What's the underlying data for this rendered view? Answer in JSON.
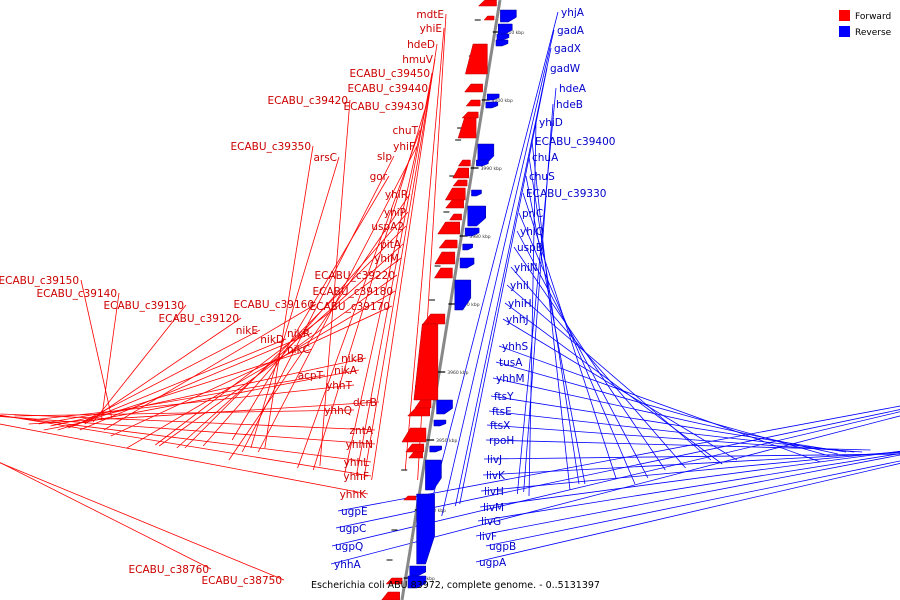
{
  "caption": "Escherichia coli ABU 83972, complete genome. - 0..5131397",
  "legend": {
    "forward_label": "Forward",
    "reverse_label": "Reverse",
    "forward_color": "#ff0000",
    "reverse_color": "#0000ff"
  },
  "ticks": [
    "4010 kbp",
    "4000 kbp",
    "3990 kbp",
    "3980 kbp",
    "3970 kbp",
    "3960 kbp",
    "3950 kbp",
    "3940 kbp",
    "3930 kbp"
  ],
  "forward_genes": [
    "mdtE",
    "yhiE",
    "hdeD",
    "hmuV",
    "ECABU_c39450",
    "ECABU_c39440",
    "ECABU_c39420",
    "ECABU_c39430",
    "chuT",
    "ECABU_c39350",
    "yhiF",
    "arsC",
    "slp",
    "gor",
    "yhiR",
    "yhiP",
    "uspA2",
    "pitA",
    "yhiM",
    "ECABU_c39220",
    "ECABU_c39180",
    "ECABU_c39150",
    "ECABU_c39140",
    "ECABU_c39160",
    "ECABU_c39130",
    "ECABU_c39170",
    "ECABU_c39120",
    "nikE",
    "nikR",
    "nikD",
    "nikC",
    "nikB",
    "nikA",
    "acpT",
    "yhhT",
    "dcrB",
    "yhhQ",
    "zntA",
    "yhhN",
    "yhhL",
    "yhhF",
    "yhhK",
    "ECABU_c38760",
    "ECABU_c38750"
  ],
  "reverse_genes": [
    "yhjA",
    "gadA",
    "gadX",
    "gadW",
    "hdeA",
    "hdeB",
    "yhiD",
    "ECABU_c39400",
    "chuA",
    "chuS",
    "ECABU_c39330",
    "prlC",
    "yhiQ",
    "uspB",
    "yhiN",
    "yhiI",
    "yhiH",
    "yhhJ",
    "yhhS",
    "tusA",
    "yhhM",
    "ftsY",
    "ftsE",
    "ftsX",
    "rpoH",
    "livJ",
    "livK",
    "livH",
    "livM",
    "livG",
    "livF",
    "ugpB",
    "ugpA",
    "ugpE",
    "ugpC",
    "ugpQ",
    "yhhA"
  ]
}
